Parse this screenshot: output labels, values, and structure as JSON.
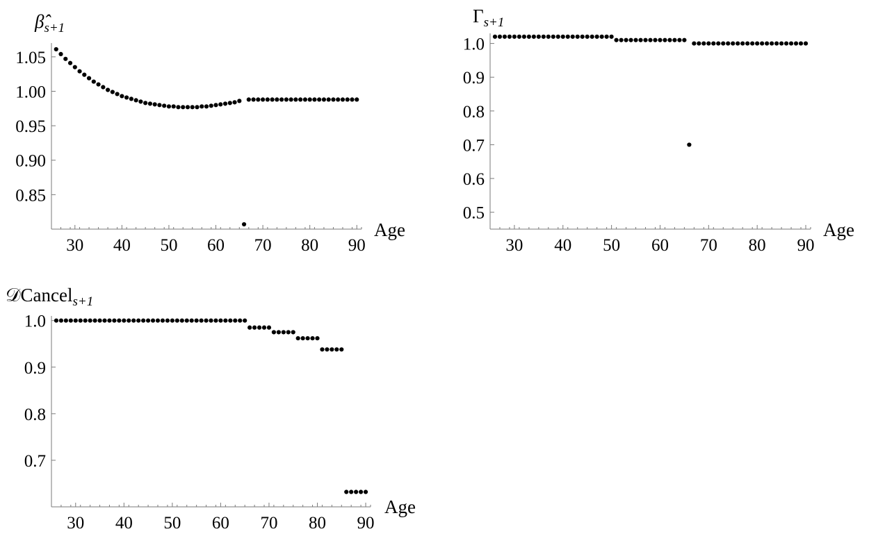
{
  "chart_data": [
    {
      "type": "scatter",
      "ylabel_main": "β̂",
      "ylabel_sub": "s+1",
      "xlabel": "Age",
      "xticks": [
        30,
        40,
        50,
        60,
        70,
        80,
        90
      ],
      "xtick_labels": [
        "30",
        "40",
        "50",
        "60",
        "70",
        "80",
        "90"
      ],
      "yticks": [
        0.85,
        0.9,
        0.95,
        1.0,
        1.05
      ],
      "ytick_labels": [
        "0.85",
        "0.90",
        "0.95",
        "1.00",
        "1.05"
      ],
      "xlim": [
        25,
        91
      ],
      "ylim": [
        0.8,
        1.07
      ],
      "x": [
        26,
        27,
        28,
        29,
        30,
        31,
        32,
        33,
        34,
        35,
        36,
        37,
        38,
        39,
        40,
        41,
        42,
        43,
        44,
        45,
        46,
        47,
        48,
        49,
        50,
        51,
        52,
        53,
        54,
        55,
        56,
        57,
        58,
        59,
        60,
        61,
        62,
        63,
        64,
        65,
        66,
        67,
        68,
        69,
        70,
        71,
        72,
        73,
        74,
        75,
        76,
        77,
        78,
        79,
        80,
        81,
        82,
        83,
        84,
        85,
        86,
        87,
        88,
        89,
        90
      ],
      "y": [
        1.061,
        1.054,
        1.047,
        1.041,
        1.035,
        1.029,
        1.024,
        1.019,
        1.014,
        1.01,
        1.006,
        1.002,
        0.999,
        0.996,
        0.993,
        0.991,
        0.989,
        0.987,
        0.985,
        0.983,
        0.982,
        0.981,
        0.98,
        0.979,
        0.978,
        0.978,
        0.977,
        0.977,
        0.977,
        0.977,
        0.977,
        0.978,
        0.978,
        0.979,
        0.98,
        0.981,
        0.982,
        0.983,
        0.984,
        0.986,
        0.807,
        0.988,
        0.988,
        0.988,
        0.988,
        0.988,
        0.988,
        0.988,
        0.988,
        0.988,
        0.988,
        0.988,
        0.988,
        0.988,
        0.988,
        0.988,
        0.988,
        0.988,
        0.988,
        0.988,
        0.988,
        0.988,
        0.988,
        0.988,
        0.988
      ]
    },
    {
      "type": "scatter",
      "ylabel_main": "Γ",
      "ylabel_sub": "s+1",
      "xlabel": "Age",
      "xticks": [
        30,
        40,
        50,
        60,
        70,
        80,
        90
      ],
      "xtick_labels": [
        "30",
        "40",
        "50",
        "60",
        "70",
        "80",
        "90"
      ],
      "yticks": [
        0.5,
        0.6,
        0.7,
        0.8,
        0.9,
        1.0
      ],
      "ytick_labels": [
        "0.5",
        "0.6",
        "0.7",
        "0.8",
        "0.9",
        "1.0"
      ],
      "xlim": [
        25,
        91
      ],
      "ylim": [
        0.45,
        1.03
      ],
      "x": [
        26,
        27,
        28,
        29,
        30,
        31,
        32,
        33,
        34,
        35,
        36,
        37,
        38,
        39,
        40,
        41,
        42,
        43,
        44,
        45,
        46,
        47,
        48,
        49,
        50,
        51,
        52,
        53,
        54,
        55,
        56,
        57,
        58,
        59,
        60,
        61,
        62,
        63,
        64,
        65,
        66,
        67,
        68,
        69,
        70,
        71,
        72,
        73,
        74,
        75,
        76,
        77,
        78,
        79,
        80,
        81,
        82,
        83,
        84,
        85,
        86,
        87,
        88,
        89,
        90
      ],
      "y": [
        1.02,
        1.02,
        1.02,
        1.02,
        1.02,
        1.02,
        1.02,
        1.02,
        1.02,
        1.02,
        1.02,
        1.02,
        1.02,
        1.02,
        1.02,
        1.02,
        1.02,
        1.02,
        1.02,
        1.02,
        1.02,
        1.02,
        1.02,
        1.02,
        1.02,
        1.01,
        1.01,
        1.01,
        1.01,
        1.01,
        1.01,
        1.01,
        1.01,
        1.01,
        1.01,
        1.01,
        1.01,
        1.01,
        1.01,
        1.01,
        0.7,
        1.0,
        1.0,
        1.0,
        1.0,
        1.0,
        1.0,
        1.0,
        1.0,
        1.0,
        1.0,
        1.0,
        1.0,
        1.0,
        1.0,
        1.0,
        1.0,
        1.0,
        1.0,
        1.0,
        1.0,
        1.0,
        1.0,
        1.0,
        1.0
      ]
    },
    {
      "type": "scatter",
      "ylabel_main": "𝒟Cancel",
      "ylabel_sub": "s+1",
      "xlabel": "Age",
      "xticks": [
        30,
        40,
        50,
        60,
        70,
        80,
        90
      ],
      "xtick_labels": [
        "30",
        "40",
        "50",
        "60",
        "70",
        "80",
        "90"
      ],
      "yticks": [
        0.7,
        0.8,
        0.9,
        1.0
      ],
      "ytick_labels": [
        "0.7",
        "0.8",
        "0.9",
        "1.0"
      ],
      "xlim": [
        25,
        91
      ],
      "ylim": [
        0.6,
        1.01
      ],
      "x": [
        26,
        27,
        28,
        29,
        30,
        31,
        32,
        33,
        34,
        35,
        36,
        37,
        38,
        39,
        40,
        41,
        42,
        43,
        44,
        45,
        46,
        47,
        48,
        49,
        50,
        51,
        52,
        53,
        54,
        55,
        56,
        57,
        58,
        59,
        60,
        61,
        62,
        63,
        64,
        65,
        66,
        67,
        68,
        69,
        70,
        71,
        72,
        73,
        74,
        75,
        76,
        77,
        78,
        79,
        80,
        81,
        82,
        83,
        84,
        85,
        86,
        87,
        88,
        89,
        90
      ],
      "y": [
        1.0,
        1.0,
        1.0,
        1.0,
        1.0,
        1.0,
        1.0,
        1.0,
        1.0,
        1.0,
        1.0,
        1.0,
        1.0,
        1.0,
        1.0,
        1.0,
        1.0,
        1.0,
        1.0,
        1.0,
        1.0,
        1.0,
        1.0,
        1.0,
        1.0,
        1.0,
        1.0,
        1.0,
        1.0,
        1.0,
        1.0,
        1.0,
        1.0,
        1.0,
        1.0,
        1.0,
        1.0,
        1.0,
        1.0,
        1.0,
        0.985,
        0.985,
        0.985,
        0.985,
        0.985,
        0.975,
        0.975,
        0.975,
        0.975,
        0.975,
        0.962,
        0.962,
        0.962,
        0.962,
        0.962,
        0.938,
        0.938,
        0.938,
        0.938,
        0.938,
        0.632,
        0.632,
        0.632,
        0.632,
        0.632
      ]
    }
  ]
}
